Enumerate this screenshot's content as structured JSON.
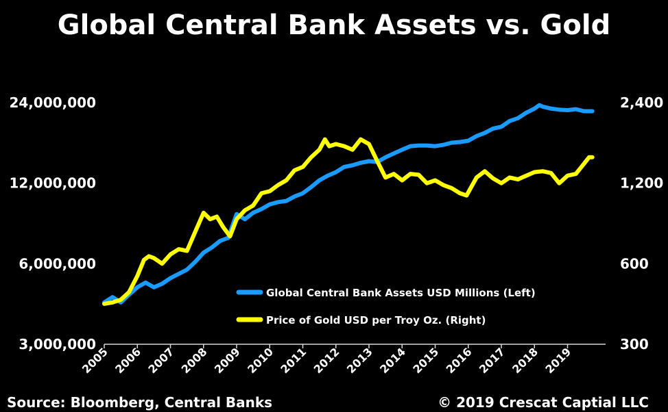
{
  "title": "Global Central Bank Assets vs. Gold",
  "source": "Source: Bloomberg, Central Banks",
  "copyright": "© 2019 Crescat Captial LLC",
  "colors": {
    "background": "#000000",
    "assets": "#1a9bff",
    "gold": "#ffff00",
    "text": "#ffffff"
  },
  "chart_data": {
    "type": "line",
    "title": "Global Central Bank Assets vs. Gold",
    "x_ticks": [
      "2005",
      "2006",
      "2007",
      "2008",
      "2009",
      "2010",
      "2011",
      "2012",
      "2013",
      "2014",
      "2015",
      "2016",
      "2017",
      "2018",
      "2019"
    ],
    "x_range": [
      2005,
      2020.15
    ],
    "grid": false,
    "legend_position": "center-right",
    "left_axis": {
      "scale": "log",
      "range": [
        3000000,
        24000000
      ],
      "ticks": [
        "24,000,000",
        "12,000,000",
        "6,000,000",
        "3,000,000"
      ],
      "tick_values": [
        24000000,
        12000000,
        6000000,
        3000000
      ]
    },
    "right_axis": {
      "scale": "log",
      "range": [
        300,
        2400
      ],
      "ticks": [
        "2,400",
        "1,200",
        "600",
        "300"
      ],
      "tick_values": [
        2400,
        1200,
        600,
        300
      ]
    },
    "series": [
      {
        "name": "Global Central Bank Assets USD Millions (Left)",
        "axis": "left",
        "color": "#1a9bff",
        "x": [
          2005.0,
          2005.25,
          2005.5,
          2005.75,
          2006.0,
          2006.25,
          2006.5,
          2006.75,
          2007.0,
          2007.25,
          2007.5,
          2007.75,
          2008.0,
          2008.25,
          2008.5,
          2008.75,
          2008.9,
          2009.0,
          2009.25,
          2009.5,
          2009.75,
          2010.0,
          2010.25,
          2010.5,
          2010.75,
          2011.0,
          2011.25,
          2011.5,
          2011.75,
          2012.0,
          2012.25,
          2012.5,
          2012.75,
          2013.0,
          2013.25,
          2013.5,
          2013.75,
          2014.0,
          2014.25,
          2014.5,
          2014.75,
          2015.0,
          2015.25,
          2015.5,
          2015.75,
          2016.0,
          2016.25,
          2016.5,
          2016.75,
          2017.0,
          2017.25,
          2017.5,
          2017.75,
          2018.0,
          2018.15,
          2018.25,
          2018.5,
          2018.75,
          2019.0,
          2019.25,
          2019.5,
          2019.75
        ],
        "values": [
          4300000,
          4500000,
          4300000,
          4600000,
          4900000,
          5100000,
          4900000,
          5050000,
          5300000,
          5500000,
          5700000,
          6100000,
          6600000,
          6900000,
          7300000,
          7500000,
          8500000,
          9200000,
          8800000,
          9300000,
          9600000,
          10000000,
          10200000,
          10300000,
          10700000,
          11000000,
          11600000,
          12300000,
          12800000,
          13200000,
          13800000,
          14000000,
          14300000,
          14500000,
          14400000,
          15000000,
          15500000,
          16000000,
          16500000,
          16600000,
          16600000,
          16500000,
          16700000,
          17000000,
          17100000,
          17300000,
          18000000,
          18500000,
          19200000,
          19500000,
          20500000,
          21000000,
          22000000,
          22800000,
          23500000,
          23200000,
          22800000,
          22600000,
          22500000,
          22700000,
          22300000,
          22300000
        ]
      },
      {
        "name": "Price of Gold USD per Troy Oz. (Right)",
        "axis": "right",
        "color": "#ffff00",
        "x": [
          2005.0,
          2005.25,
          2005.5,
          2005.75,
          2006.0,
          2006.2,
          2006.35,
          2006.5,
          2006.75,
          2007.0,
          2007.25,
          2007.5,
          2007.75,
          2008.0,
          2008.2,
          2008.4,
          2008.6,
          2008.8,
          2009.0,
          2009.25,
          2009.5,
          2009.75,
          2010.0,
          2010.25,
          2010.5,
          2010.75,
          2011.0,
          2011.25,
          2011.5,
          2011.67,
          2011.8,
          2012.0,
          2012.25,
          2012.5,
          2012.75,
          2013.0,
          2013.25,
          2013.5,
          2013.75,
          2014.0,
          2014.25,
          2014.5,
          2014.75,
          2015.0,
          2015.25,
          2015.5,
          2015.75,
          2015.95,
          2016.25,
          2016.5,
          2016.75,
          2017.0,
          2017.25,
          2017.5,
          2017.75,
          2018.0,
          2018.25,
          2018.5,
          2018.75,
          2019.0,
          2019.25,
          2019.5,
          2019.65,
          2019.75
        ],
        "values": [
          425,
          430,
          440,
          470,
          540,
          620,
          640,
          630,
          600,
          650,
          680,
          670,
          790,
          930,
          880,
          900,
          820,
          760,
          880,
          950,
          990,
          1100,
          1120,
          1180,
          1230,
          1340,
          1380,
          1500,
          1600,
          1750,
          1650,
          1680,
          1650,
          1600,
          1750,
          1680,
          1450,
          1260,
          1300,
          1230,
          1300,
          1290,
          1200,
          1230,
          1180,
          1150,
          1100,
          1080,
          1260,
          1330,
          1250,
          1200,
          1260,
          1240,
          1280,
          1320,
          1330,
          1310,
          1200,
          1280,
          1300,
          1420,
          1500,
          1500
        ]
      }
    ]
  }
}
